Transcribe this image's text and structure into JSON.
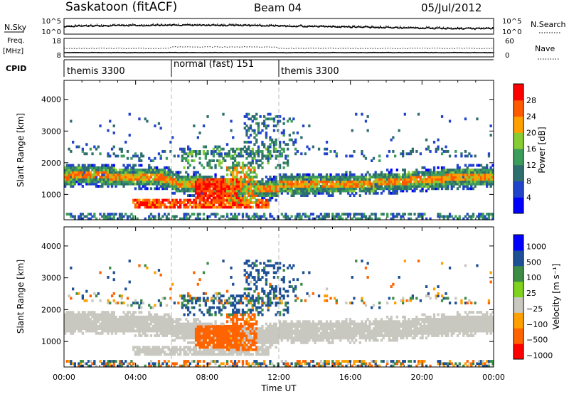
{
  "header": {
    "station": "Saskatoon (fitACF)",
    "beam": "Beam 04",
    "date": "05/Jul/2012"
  },
  "noise_panel": {
    "left_label": "N.Sky",
    "right_label": "N.Search",
    "left_ticks": [
      "10^5",
      "10^0"
    ],
    "right_ticks": [
      "10^5",
      "10^0"
    ]
  },
  "freq_panel": {
    "left_label_line1": "Freq.",
    "left_label_line2": "[MHz]",
    "left_ticks": [
      "18",
      "8"
    ],
    "right_ticks": [
      "60",
      "0"
    ],
    "right_label": "Nave"
  },
  "cpid_panel": {
    "label": "CPID",
    "segments": [
      {
        "text": "themis 3300",
        "start_hour": 0,
        "end_hour": 6
      },
      {
        "text": "normal (fast) 151",
        "start_hour": 6,
        "end_hour": 12
      },
      {
        "text": "themis 3300",
        "start_hour": 12,
        "end_hour": 24
      }
    ]
  },
  "x_axis": {
    "label": "Time UT",
    "ticks": [
      "00:00",
      "04:00",
      "08:00",
      "12:00",
      "16:00",
      "20:00",
      "00:00"
    ]
  },
  "power_panel": {
    "ylabel": "Slant Range [km]",
    "yticks": [
      "4000",
      "3000",
      "2000",
      "1000"
    ],
    "colorbar_label": "Power [dB]",
    "colorbar_ticks": [
      "28",
      "24",
      "20",
      "16",
      "12",
      "8",
      "4"
    ]
  },
  "velocity_panel": {
    "ylabel": "Slant Range [km]",
    "yticks": [
      "4000",
      "3000",
      "2000",
      "1000"
    ],
    "colorbar_label": "Velocity [m s⁻¹]",
    "colorbar_ticks": [
      "1000",
      "500",
      "100",
      "25",
      "−25",
      "−100",
      "−500",
      "−1000"
    ]
  },
  "chart_data": [
    {
      "type": "heatmap",
      "title": "Power",
      "xlabel": "Time UT",
      "ylabel": "Slant Range [km]",
      "xlim": [
        0,
        24
      ],
      "ylim": [
        200,
        4600
      ],
      "colorbar": {
        "label": "Power [dB]",
        "range": [
          0,
          32
        ],
        "ticks": [
          4,
          8,
          12,
          16,
          20,
          24,
          28
        ]
      },
      "colors": [
        "#0000ff",
        "#2244cc",
        "#2f6e6e",
        "#3c9c5c",
        "#88cc33",
        "#ffa000",
        "#ff5a00",
        "#ff0000"
      ],
      "bands": [
        {
          "name": "main band",
          "start_hour": 0,
          "end_hour": 24,
          "center_range_km": 1500,
          "typical_power_db": 20
        },
        {
          "name": "near-range strong echo",
          "start_hour": 4.0,
          "end_hour": 11.5,
          "center_range_km": 700,
          "typical_power_db": 30
        },
        {
          "name": "mid-morning strong patch",
          "start_hour": 7.5,
          "end_hour": 9.5,
          "center_range_km": 1100,
          "typical_power_db": 30
        },
        {
          "name": "upper band",
          "start_hour": 0,
          "end_hour": 24,
          "center_range_km": 2300,
          "typical_power_db": 10
        }
      ]
    },
    {
      "type": "heatmap",
      "title": "Velocity",
      "xlabel": "Time UT",
      "ylabel": "Slant Range [km]",
      "xlim": [
        0,
        24
      ],
      "ylim": [
        200,
        4600
      ],
      "colorbar": {
        "label": "Velocity [m s⁻¹]",
        "ticks": [
          1000,
          500,
          100,
          25,
          -25,
          -100,
          -500,
          -1000
        ]
      },
      "colors": [
        "#0000ff",
        "#1e5096",
        "#3c8c46",
        "#7fd21e",
        "#c8c8c0",
        "#ffa000",
        "#ff6400",
        "#ff0000"
      ],
      "bands": [
        {
          "name": "main band (ground scatter)",
          "start_hour": 0,
          "end_hour": 24,
          "center_range_km": 1500,
          "typical_velocity": 0
        },
        {
          "name": "morning flow",
          "start_hour": 7.0,
          "end_hour": 10.5,
          "center_range_km": 1200,
          "typical_velocity": -200
        },
        {
          "name": "near-range band",
          "start_hour": 4.0,
          "end_hour": 11.5,
          "center_range_km": 700,
          "typical_velocity": 0
        }
      ]
    }
  ]
}
